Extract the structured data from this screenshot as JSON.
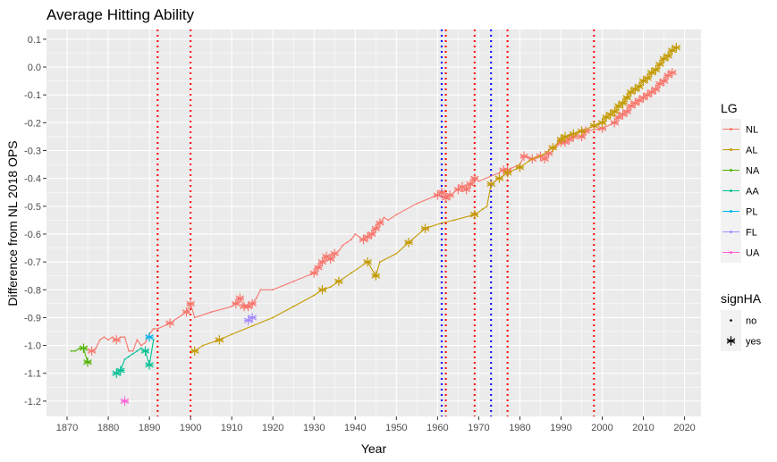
{
  "chart_data": {
    "type": "line",
    "title": "Average Hitting Ability",
    "xlabel": "Year",
    "ylabel": "Difference from NL 2018 OPS",
    "xlim": [
      1865,
      2024
    ],
    "ylim": [
      -1.255,
      0.135
    ],
    "xticks": [
      "1870",
      "1880",
      "1890",
      "1900",
      "1910",
      "1920",
      "1930",
      "1940",
      "1950",
      "1960",
      "1970",
      "1980",
      "1990",
      "2000",
      "2010",
      "2020"
    ],
    "yticks": [
      "0.1",
      "0.0",
      "-0.1",
      "-0.2",
      "-0.3",
      "-0.4",
      "-0.5",
      "-0.6",
      "-0.7",
      "-0.8",
      "-0.9",
      "-1.0",
      "-1.1",
      "-1.2"
    ],
    "grid": true,
    "legend_position": "right",
    "legend": {
      "color_title": "LG",
      "shape_title": "signHA",
      "shape_items": [
        "no",
        "yes"
      ]
    },
    "vlines": [
      {
        "x": 1892,
        "color": "#ff0000"
      },
      {
        "x": 1900,
        "color": "#ff0000"
      },
      {
        "x": 1961,
        "color": "#0000ff"
      },
      {
        "x": 1962,
        "color": "#ff0000"
      },
      {
        "x": 1969,
        "color": "#ff0000"
      },
      {
        "x": 1973,
        "color": "#0000ff"
      },
      {
        "x": 1977,
        "color": "#ff0000"
      },
      {
        "x": 1998,
        "color": "#ff0000"
      }
    ],
    "series": [
      {
        "name": "NL",
        "color": "#F8766D",
        "x": [
          1876,
          1877,
          1878,
          1879,
          1880,
          1881,
          1882,
          1883,
          1884,
          1885,
          1886,
          1887,
          1888,
          1889,
          1890,
          1891,
          1892,
          1895,
          1899,
          1900,
          1901,
          1905,
          1910,
          1911,
          1912,
          1913,
          1914,
          1915,
          1916,
          1917,
          1920,
          1925,
          1930,
          1931,
          1932,
          1933,
          1934,
          1935,
          1936,
          1937,
          1938,
          1939,
          1940,
          1942,
          1943,
          1944,
          1945,
          1946,
          1947,
          1948,
          1950,
          1955,
          1960,
          1961,
          1962,
          1963,
          1965,
          1966,
          1967,
          1968,
          1969,
          1970,
          1975,
          1976,
          1977,
          1980,
          1981,
          1983,
          1985,
          1986,
          1987,
          1988,
          1990,
          1991,
          1992,
          1993,
          1995,
          1996,
          2000,
          2003,
          2004,
          2005,
          2006,
          2007,
          2008,
          2009,
          2010,
          2011,
          2012,
          2013,
          2014,
          2015,
          2016,
          2017
        ],
        "y": [
          -1.02,
          -1.01,
          -0.98,
          -0.97,
          -0.98,
          -0.97,
          -0.98,
          -0.97,
          -0.97,
          -1.02,
          -1.02,
          -0.98,
          -1.0,
          -0.99,
          -0.96,
          -0.94,
          -0.94,
          -0.92,
          -0.88,
          -0.85,
          -0.9,
          -0.88,
          -0.86,
          -0.85,
          -0.83,
          -0.86,
          -0.86,
          -0.85,
          -0.83,
          -0.8,
          -0.8,
          -0.77,
          -0.74,
          -0.72,
          -0.7,
          -0.68,
          -0.69,
          -0.67,
          -0.66,
          -0.64,
          -0.63,
          -0.62,
          -0.6,
          -0.62,
          -0.61,
          -0.6,
          -0.58,
          -0.56,
          -0.54,
          -0.55,
          -0.53,
          -0.49,
          -0.46,
          -0.45,
          -0.47,
          -0.46,
          -0.44,
          -0.43,
          -0.44,
          -0.42,
          -0.4,
          -0.41,
          -0.38,
          -0.37,
          -0.37,
          -0.35,
          -0.32,
          -0.33,
          -0.32,
          -0.33,
          -0.31,
          -0.3,
          -0.27,
          -0.27,
          -0.26,
          -0.25,
          -0.25,
          -0.23,
          -0.22,
          -0.2,
          -0.18,
          -0.17,
          -0.16,
          -0.14,
          -0.13,
          -0.12,
          -0.11,
          -0.1,
          -0.09,
          -0.08,
          -0.06,
          -0.05,
          -0.03,
          -0.02
        ],
        "signHA": [
          1,
          0,
          0,
          0,
          0,
          0,
          1,
          0,
          0,
          0,
          0,
          0,
          0,
          0,
          0,
          0,
          0,
          1,
          1,
          1,
          0,
          0,
          0,
          1,
          1,
          1,
          1,
          1,
          0,
          0,
          0,
          0,
          1,
          1,
          1,
          1,
          1,
          1,
          0,
          0,
          0,
          0,
          0,
          1,
          1,
          1,
          1,
          1,
          0,
          0,
          0,
          0,
          1,
          1,
          1,
          1,
          1,
          1,
          1,
          1,
          1,
          0,
          0,
          1,
          1,
          0,
          1,
          1,
          1,
          1,
          1,
          0,
          1,
          1,
          1,
          1,
          1,
          1,
          1,
          1,
          1,
          1,
          1,
          1,
          1,
          1,
          1,
          1,
          1,
          1,
          1,
          1,
          1,
          1
        ]
      },
      {
        "name": "AL",
        "color": "#C49A00",
        "x": [
          1901,
          1903,
          1907,
          1910,
          1915,
          1920,
          1925,
          1930,
          1932,
          1934,
          1936,
          1939,
          1943,
          1945,
          1946,
          1950,
          1953,
          1957,
          1961,
          1964,
          1969,
          1971,
          1972,
          1973,
          1975,
          1977,
          1980,
          1983,
          1985,
          1988,
          1990,
          1991,
          1993,
          1995,
          1998,
          2000,
          2001,
          2002,
          2003,
          2004,
          2005,
          2006,
          2007,
          2008,
          2009,
          2010,
          2011,
          2012,
          2013,
          2014,
          2015,
          2016,
          2017,
          2018
        ],
        "y": [
          -1.02,
          -1.0,
          -0.98,
          -0.96,
          -0.93,
          -0.9,
          -0.86,
          -0.82,
          -0.8,
          -0.79,
          -0.77,
          -0.74,
          -0.7,
          -0.75,
          -0.7,
          -0.67,
          -0.63,
          -0.58,
          -0.56,
          -0.55,
          -0.53,
          -0.51,
          -0.5,
          -0.42,
          -0.4,
          -0.38,
          -0.36,
          -0.33,
          -0.32,
          -0.29,
          -0.26,
          -0.25,
          -0.24,
          -0.23,
          -0.21,
          -0.2,
          -0.18,
          -0.17,
          -0.16,
          -0.14,
          -0.13,
          -0.11,
          -0.09,
          -0.08,
          -0.07,
          -0.05,
          -0.04,
          -0.02,
          -0.01,
          0.01,
          0.03,
          0.04,
          0.06,
          0.07
        ],
        "signHA": [
          1,
          0,
          1,
          0,
          0,
          0,
          0,
          0,
          1,
          0,
          1,
          0,
          1,
          1,
          0,
          0,
          1,
          1,
          0,
          0,
          1,
          0,
          0,
          1,
          1,
          1,
          1,
          0,
          0,
          1,
          1,
          1,
          1,
          1,
          1,
          1,
          1,
          1,
          1,
          1,
          1,
          1,
          1,
          1,
          1,
          1,
          1,
          1,
          1,
          1,
          1,
          1,
          1,
          1
        ]
      },
      {
        "name": "NA",
        "color": "#53B400",
        "x": [
          1871,
          1872,
          1873,
          1874,
          1875
        ],
        "y": [
          -1.02,
          -1.02,
          -1.01,
          -1.01,
          -1.06
        ],
        "signHA": [
          0,
          0,
          0,
          1,
          1
        ]
      },
      {
        "name": "AA",
        "color": "#00C094",
        "x": [
          1882,
          1883,
          1884,
          1885,
          1886,
          1887,
          1888,
          1889,
          1890,
          1891
        ],
        "y": [
          -1.1,
          -1.09,
          -1.05,
          -1.04,
          -1.03,
          -1.02,
          -1.01,
          -1.02,
          -1.07,
          -0.98
        ],
        "signHA": [
          1,
          1,
          0,
          0,
          0,
          0,
          0,
          1,
          1,
          0
        ]
      },
      {
        "name": "PL",
        "color": "#00B6EB",
        "x": [
          1890
        ],
        "y": [
          -0.97
        ],
        "signHA": [
          1
        ]
      },
      {
        "name": "FL",
        "color": "#A58AFF",
        "x": [
          1914,
          1915
        ],
        "y": [
          -0.91,
          -0.9
        ],
        "signHA": [
          1,
          1
        ]
      },
      {
        "name": "UA",
        "color": "#FB61D7",
        "x": [
          1884
        ],
        "y": [
          -1.2
        ],
        "signHA": [
          1
        ]
      }
    ]
  }
}
